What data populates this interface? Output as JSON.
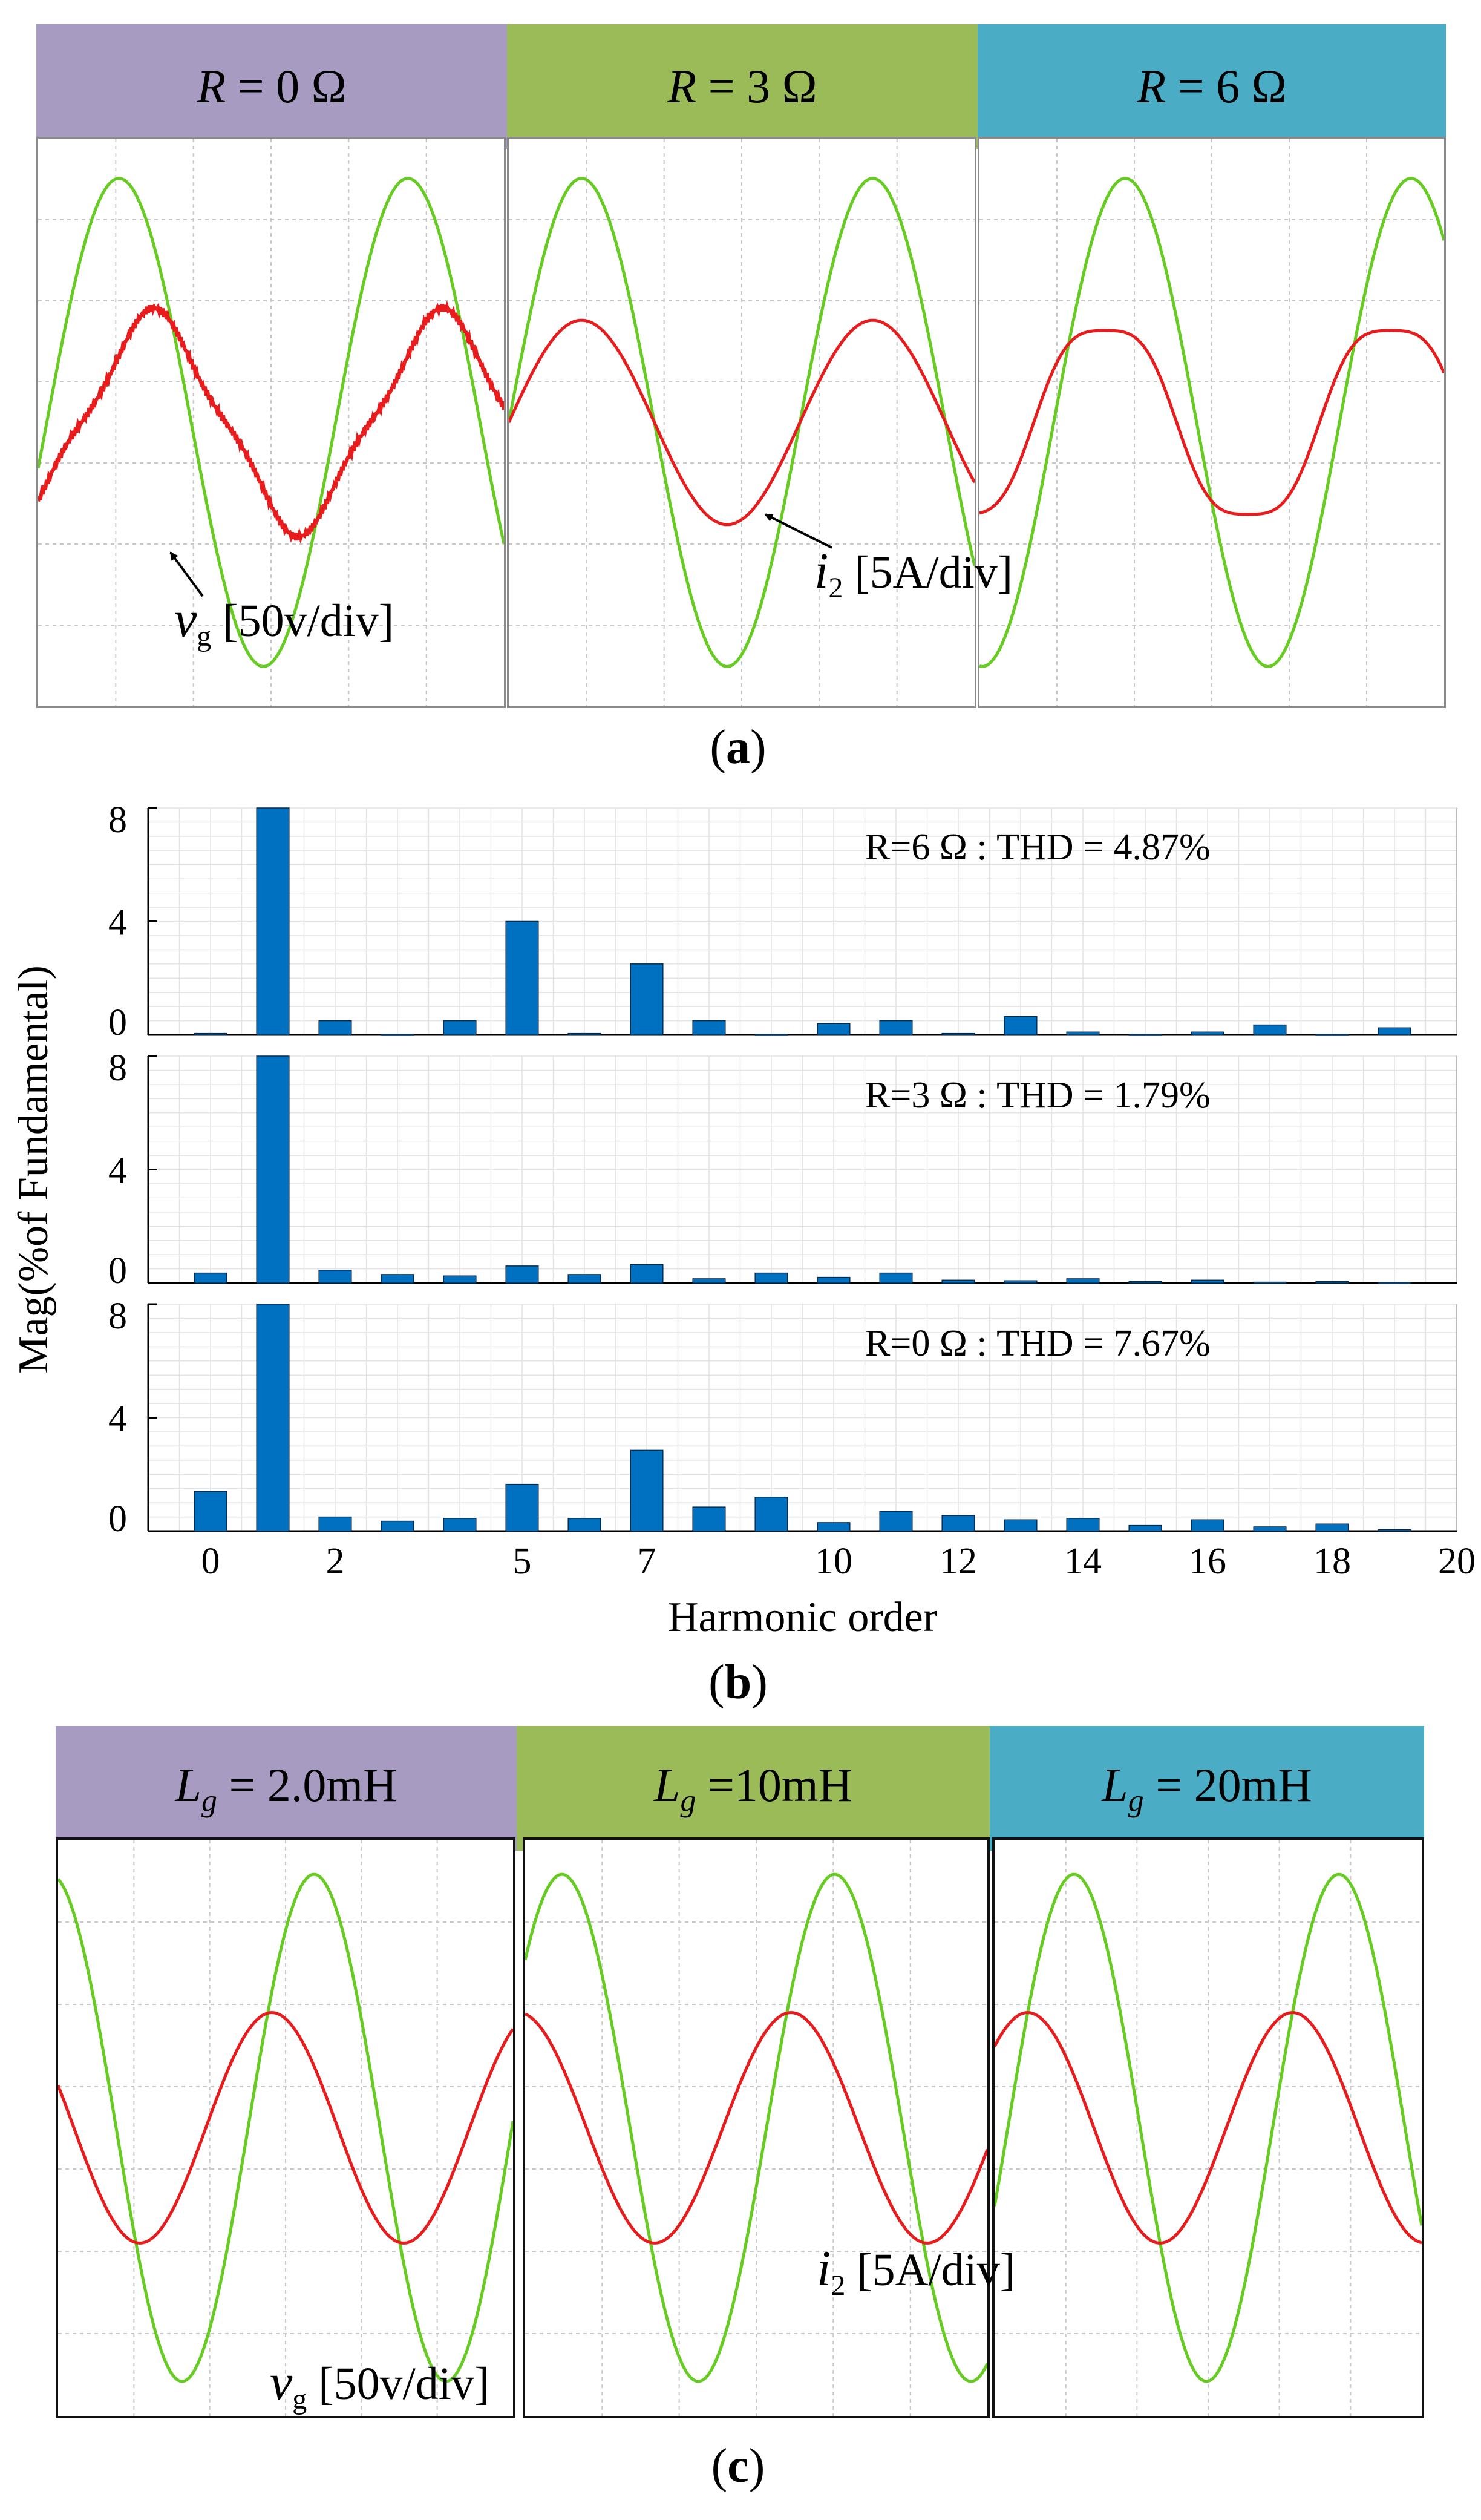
{
  "panel_a": {
    "caption_letter": "a",
    "headers": [
      {
        "var": "R",
        "text": " = 0 Ω",
        "color": "#a79bc1"
      },
      {
        "var": "R",
        "text": " = 3 Ω",
        "color": "#9bbb59"
      },
      {
        "var": "R",
        "text": " = 6 Ω",
        "color": "#4bacc6"
      }
    ],
    "vg_label": {
      "sym": "v",
      "sub": "g",
      "text": " [50v/div]"
    },
    "i2_label": {
      "sym": "i",
      "sub": "2",
      "text": " [5A/div]"
    }
  },
  "panel_b": {
    "caption_letter": "b",
    "ylabel": "Mag(%of Fundamental)",
    "xlabel": "Harmonic order"
  },
  "panel_c": {
    "caption_letter": "c",
    "headers": [
      {
        "var": "L",
        "sub": "g",
        "text": " = 2.0mH",
        "color": "#a79bc1"
      },
      {
        "var": "L",
        "sub": "g",
        "text": " =10mH",
        "color": "#9bbb59"
      },
      {
        "var": "L",
        "sub": "g",
        "text": " = 20mH",
        "color": "#4bacc6"
      }
    ],
    "vg_label": {
      "sym": "v",
      "sub": "g",
      "text": " [50v/div]"
    },
    "i2_label": {
      "sym": "i",
      "sub": "2",
      "text": " [5A/div]"
    }
  },
  "colors": {
    "voltage": "#66cc22",
    "current": "#e81c1c",
    "bar": "#0070c0"
  },
  "chart_data": {
    "type": "bar",
    "xlabel": "Harmonic order",
    "ylabel": "Mag(%of Fundamental)",
    "xlim": [
      -1,
      20
    ],
    "ylim": [
      0,
      8
    ],
    "xticks": [
      0,
      2,
      5,
      7,
      10,
      12,
      14,
      16,
      18,
      20
    ],
    "yticks": [
      0,
      4,
      8
    ],
    "series": [
      {
        "name": "R=6 Ω",
        "annotation": "R=6 Ω :  THD = 4.87%",
        "x": [
          0,
          1,
          2,
          3,
          4,
          5,
          6,
          7,
          8,
          9,
          10,
          11,
          12,
          13,
          14,
          15,
          16,
          17,
          18,
          19
        ],
        "values": [
          0.05,
          8.5,
          0.5,
          0.02,
          0.5,
          4.0,
          0.05,
          2.5,
          0.5,
          0.02,
          0.4,
          0.5,
          0.05,
          0.65,
          0.1,
          0.02,
          0.1,
          0.35,
          0.02,
          0.25
        ]
      },
      {
        "name": "R=3 Ω",
        "annotation": "R=3 Ω :  THD = 1.79%",
        "x": [
          0,
          1,
          2,
          3,
          4,
          5,
          6,
          7,
          8,
          9,
          10,
          11,
          12,
          13,
          14,
          15,
          16,
          17,
          18,
          19
        ],
        "values": [
          0.35,
          8.5,
          0.45,
          0.3,
          0.25,
          0.6,
          0.3,
          0.65,
          0.15,
          0.35,
          0.2,
          0.35,
          0.1,
          0.08,
          0.15,
          0.05,
          0.1,
          0.03,
          0.05,
          0.02
        ]
      },
      {
        "name": "R=0 Ω",
        "annotation": "R=0 Ω :  THD = 7.67%",
        "x": [
          0,
          1,
          2,
          3,
          4,
          5,
          6,
          7,
          8,
          9,
          10,
          11,
          12,
          13,
          14,
          15,
          16,
          17,
          18,
          19
        ],
        "values": [
          1.4,
          8.5,
          0.5,
          0.35,
          0.45,
          1.65,
          0.45,
          2.85,
          0.85,
          1.2,
          0.3,
          0.7,
          0.55,
          0.4,
          0.45,
          0.2,
          0.4,
          0.15,
          0.25,
          0.05
        ]
      }
    ]
  }
}
